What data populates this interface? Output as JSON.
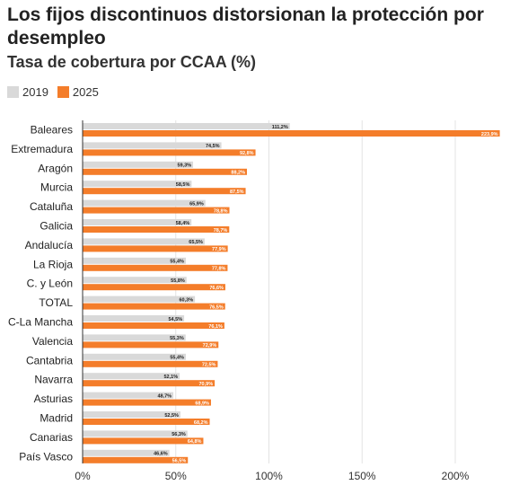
{
  "colors": {
    "s2019": "#d9d9d9",
    "s2025": "#f47d2a",
    "grid": "#e3e3e3",
    "axis": "#333333"
  },
  "chart_data": {
    "type": "bar",
    "orientation": "horizontal",
    "title": "Los fijos discontinuos distorsionan la protección por desempleo",
    "subtitle": "Tasa de cobertura por CCAA (%)",
    "legend": "top-left",
    "grid": true,
    "xlim": [
      0,
      230
    ],
    "ticks": [
      {
        "value": 0,
        "label": "0%"
      },
      {
        "value": 50,
        "label": "50%"
      },
      {
        "value": 100,
        "label": "100%"
      },
      {
        "value": 150,
        "label": "150%"
      },
      {
        "value": 200,
        "label": "200%"
      }
    ],
    "categories": [
      "Baleares",
      "Extremadura",
      "Aragón",
      "Murcia",
      "Cataluña",
      "Galicia",
      "Andalucía",
      "La Rioja",
      "C. y León",
      "TOTAL",
      "C-La Mancha",
      "Valencia",
      "Cantabria",
      "Navarra",
      "Asturias",
      "Madrid",
      "Canarias",
      "País Vasco"
    ],
    "series": [
      {
        "name": "2019",
        "values": [
          111.2,
          74.5,
          59.3,
          58.5,
          65.9,
          58.4,
          65.5,
          55.4,
          55.8,
          60.3,
          54.5,
          55.3,
          55.4,
          52.1,
          48.7,
          52.5,
          56.3,
          46.6
        ],
        "labels": [
          "111,2%",
          "74,5%",
          "59,3%",
          "58,5%",
          "65,9%",
          "58,4%",
          "65,5%",
          "55,4%",
          "55,8%",
          "60,3%",
          "54,5%",
          "55,3%",
          "55,4%",
          "52,1%",
          "48,7%",
          "52,5%",
          "56,3%",
          "46,6%"
        ]
      },
      {
        "name": "2025",
        "values": [
          223.9,
          92.8,
          88.2,
          87.5,
          78.8,
          78.7,
          77.9,
          77.8,
          76.6,
          76.5,
          76.1,
          72.9,
          72.5,
          70.9,
          68.9,
          68.2,
          64.8,
          56.5
        ],
        "labels": [
          "223,9%",
          "92,8%",
          "88,2%",
          "87,5%",
          "78,8%",
          "78,7%",
          "77,9%",
          "77,8%",
          "76,6%",
          "76,5%",
          "76,1%",
          "72,9%",
          "72,5%",
          "70,9%",
          "68,9%",
          "68,2%",
          "64,8%",
          "56,5%"
        ]
      }
    ]
  }
}
